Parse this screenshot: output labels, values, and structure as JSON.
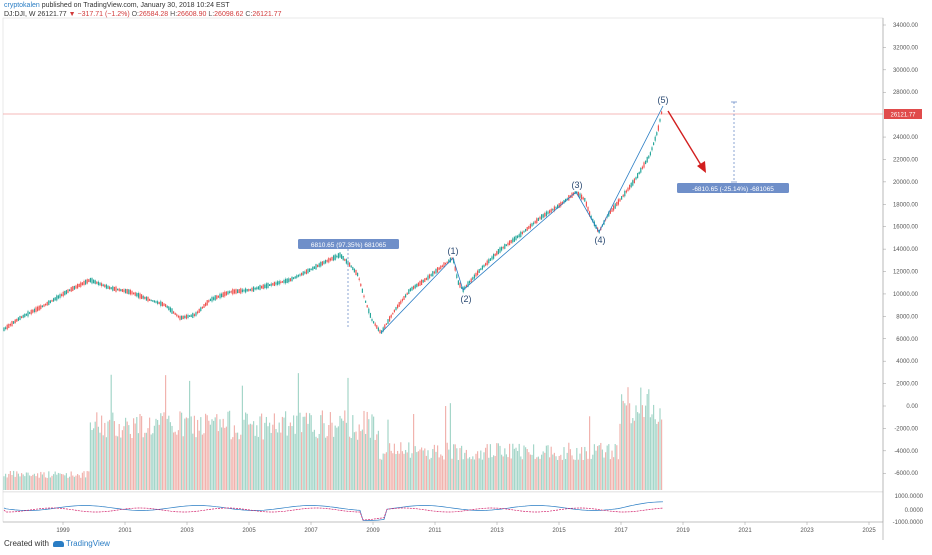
{
  "header": {
    "author": "cryptokalen",
    "published_text": "published on TradingView.com, January 30, 2018 10:24 EST",
    "symbol": "DJ:DJI, W",
    "price": "26121.77",
    "change_arrow": "▼",
    "change": "−317.71 (−1.2%)",
    "open_label": "O:",
    "open": "26584.28",
    "high_label": "H:",
    "high": "26608.90",
    "low_label": "L:",
    "low": "26098.62",
    "close_label": "C:",
    "close": "26121.77"
  },
  "price_axis": {
    "ticks": [
      "34000.00",
      "32000.00",
      "30000.00",
      "28000.00",
      "24000.00",
      "22000.00",
      "20000.00",
      "18000.00",
      "16000.00",
      "14000.00",
      "12000.00",
      "10000.00",
      "8000.00",
      "6000.00",
      "4000.00",
      "2000.00",
      "0.00",
      "-2000.00",
      "-4000.00",
      "-6000.00"
    ],
    "last_price": "26121.77"
  },
  "osc_axis": {
    "ticks": [
      "1000.0000",
      "0.0000",
      "-1000.0000"
    ]
  },
  "time_axis": {
    "ticks": [
      "1999",
      "2001",
      "2003",
      "2005",
      "2007",
      "2009",
      "2011",
      "2013",
      "2015",
      "2017",
      "2019",
      "2021",
      "2023",
      "2025"
    ]
  },
  "annotations": {
    "waves": [
      "(1)",
      "(2)",
      "(3)",
      "(4)",
      "(5)"
    ],
    "measure_up": "6810.65 (97.35%) 681065",
    "measure_down": "-6810.65 (-25.14%) -681065"
  },
  "colors": {
    "up": "#26a69a",
    "down": "#ef5350",
    "wave_line": "#2a7dc4",
    "label_bg": "#6f8fc9",
    "price_tag": "#e04b4b",
    "arrow": "#d21f1f"
  },
  "footer": {
    "created_with": "Created with",
    "brand": "TradingView"
  }
}
